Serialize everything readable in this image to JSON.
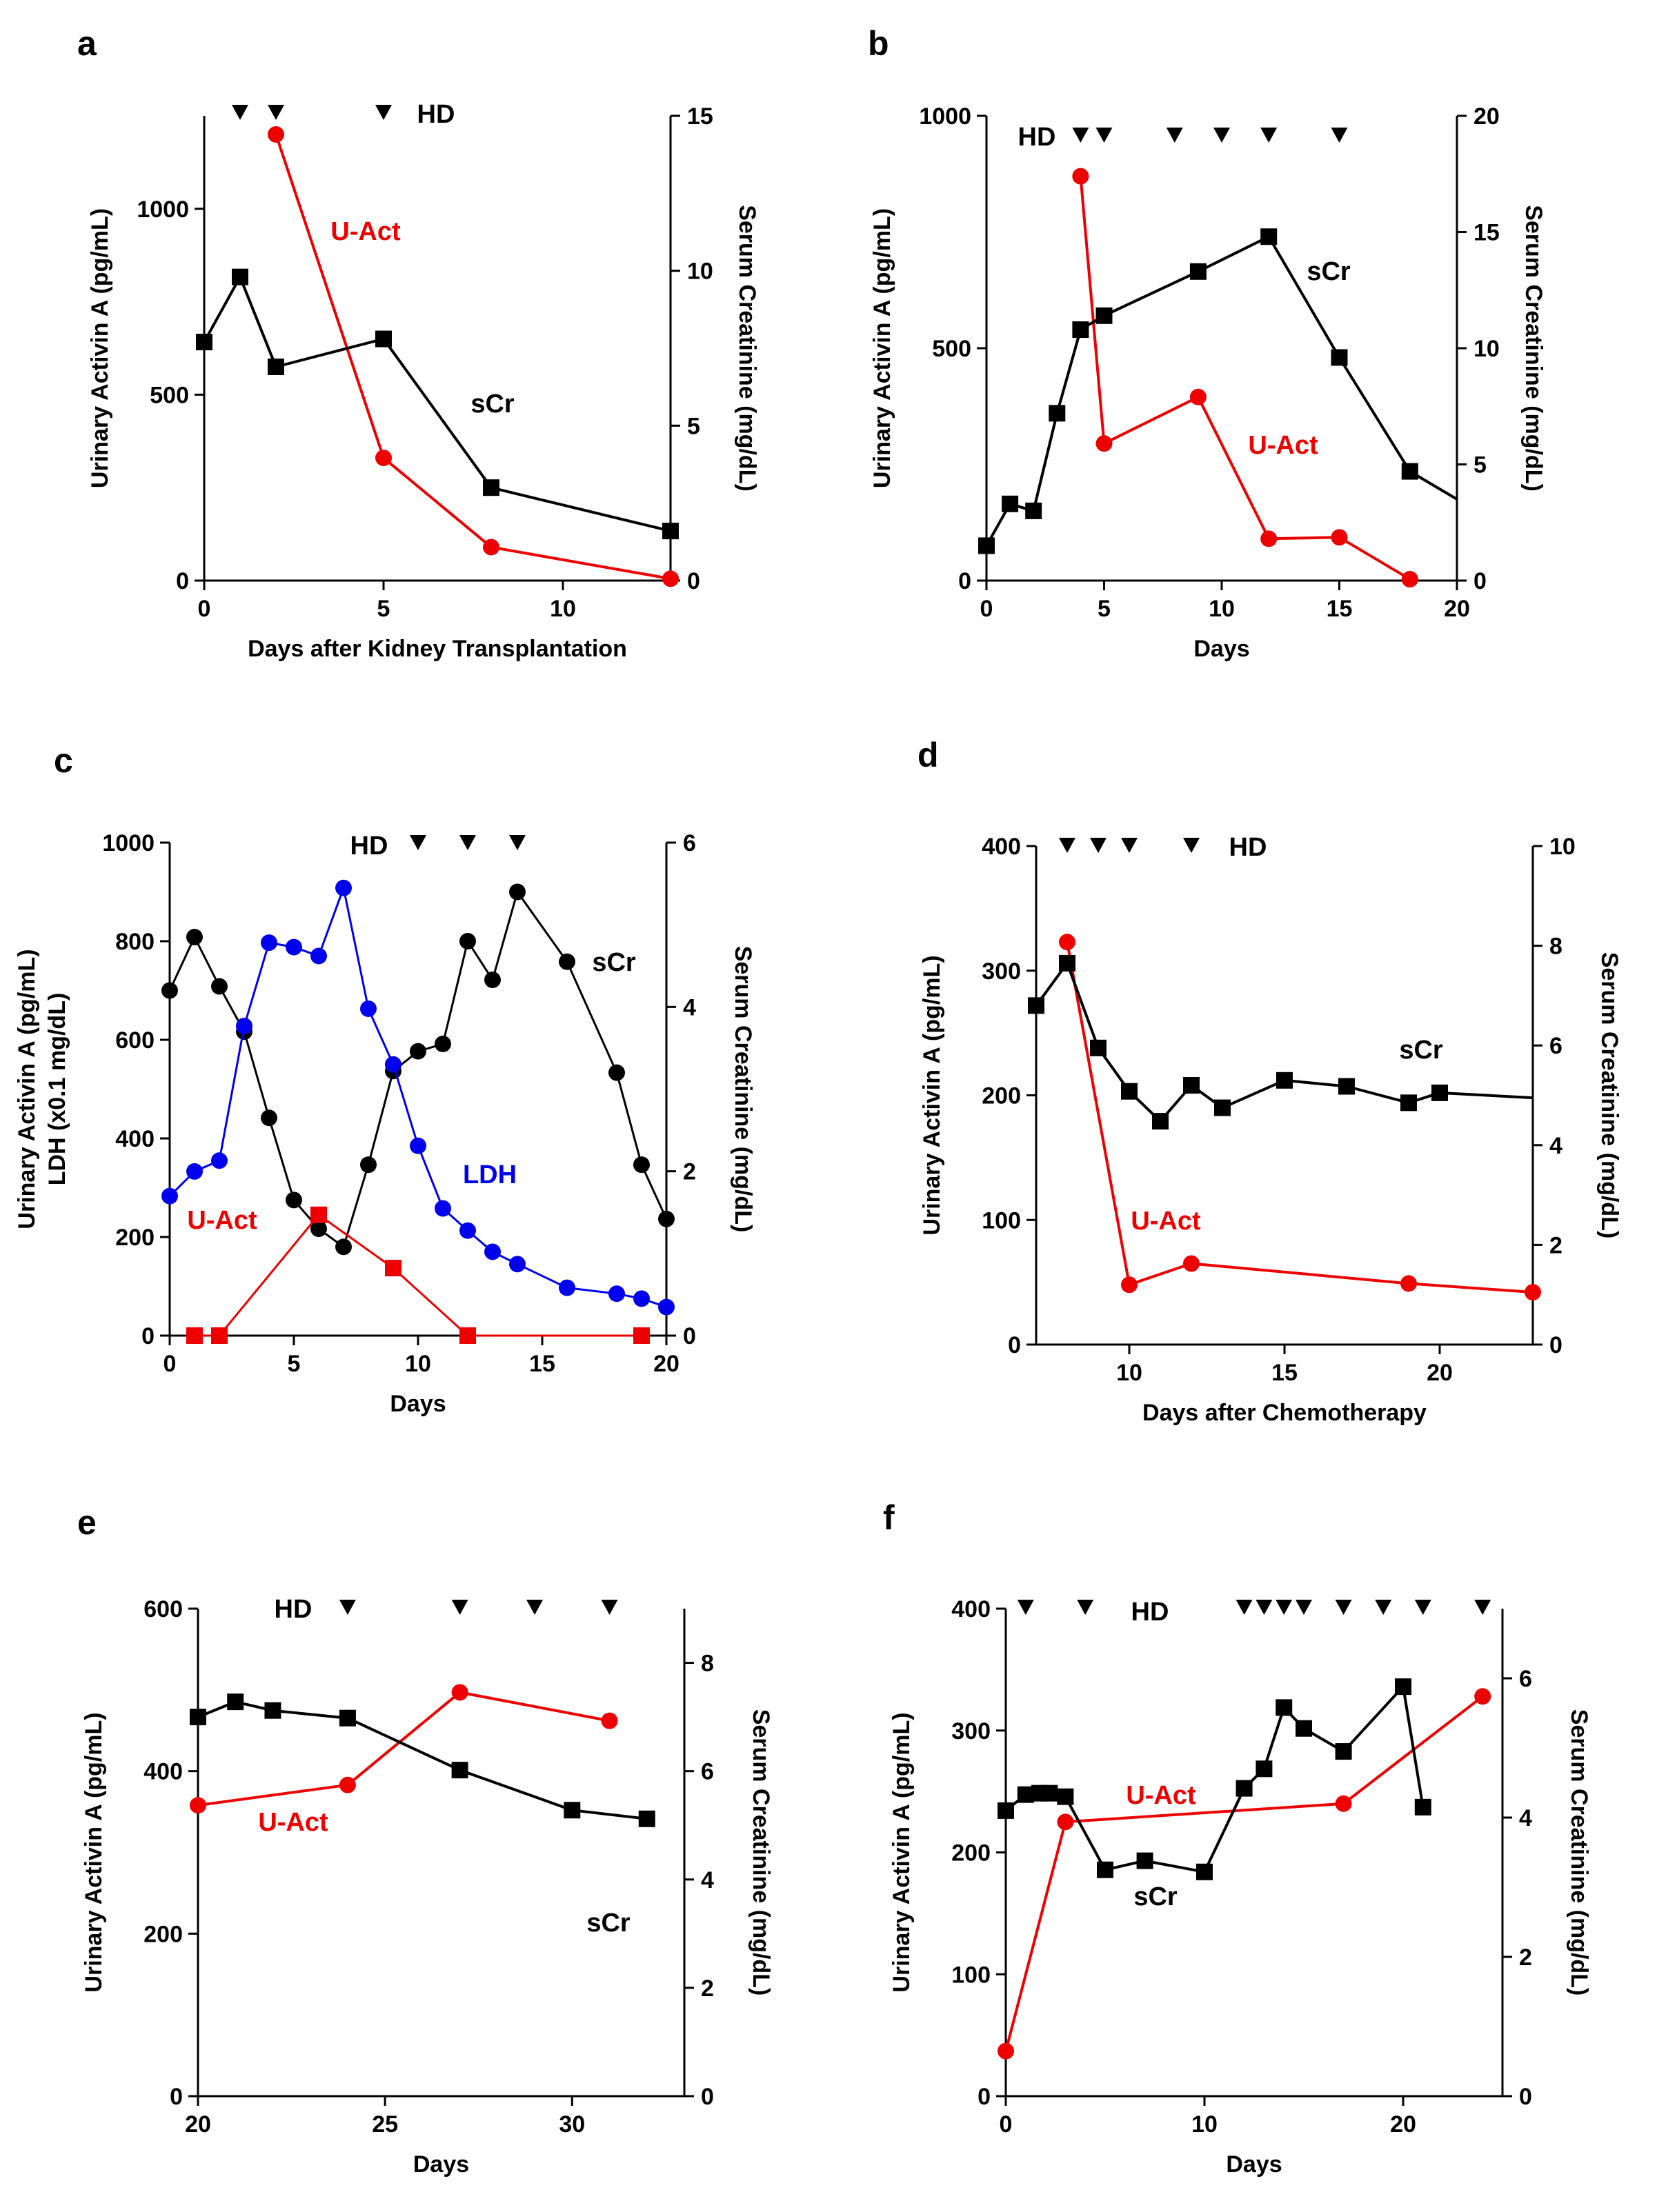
{
  "colors": {
    "scr": "#000000",
    "uact": "#ee0000",
    "ldh": "#0000ee",
    "axis": "#000000"
  },
  "chart_data": [
    {
      "id": "a",
      "panel_label": "a",
      "type": "line",
      "xlabel": "Days after Kidney Transplantation",
      "ylabel_left": "Urinary Activin A (pg/mL)",
      "ylabel_right": "Serum Creatinine (mg/dL)",
      "xlim": [
        0,
        13
      ],
      "xticks": [
        0,
        5,
        10
      ],
      "ylim_left": [
        0,
        1250
      ],
      "yticks_left": [
        0,
        500,
        1000
      ],
      "ylim_right": [
        0,
        15
      ],
      "yticks_right": [
        0,
        5,
        10,
        15
      ],
      "hd_label": "HD",
      "hd_days": [
        1,
        2,
        5
      ],
      "series": [
        {
          "name": "U-Act",
          "label": "U-Act",
          "color": "#ee0000",
          "marker": "circle",
          "axis": "left",
          "x": [
            2,
            5,
            8,
            13
          ],
          "y": [
            1200,
            330,
            90,
            5
          ]
        },
        {
          "name": "sCr",
          "label": "sCr",
          "color": "#000000",
          "marker": "square",
          "axis": "right",
          "x": [
            0,
            1,
            2,
            5,
            8,
            13
          ],
          "y": [
            7.7,
            9.8,
            6.9,
            7.8,
            3.0,
            1.6
          ]
        }
      ]
    },
    {
      "id": "b",
      "panel_label": "b",
      "type": "line",
      "xlabel": "Days",
      "ylabel_left": "Urinary Activin A (pg/mL)",
      "ylabel_right": "Serum Creatinine (mg/dL)",
      "xlim": [
        0,
        20
      ],
      "xticks": [
        0,
        5,
        10,
        15,
        20
      ],
      "ylim_left": [
        0,
        1000
      ],
      "yticks_left": [
        0,
        500,
        1000
      ],
      "ylim_right": [
        0,
        20
      ],
      "yticks_right": [
        0,
        5,
        10,
        15,
        20
      ],
      "hd_label": "HD",
      "hd_days": [
        4,
        5,
        8,
        10,
        12,
        15
      ],
      "series": [
        {
          "name": "U-Act",
          "label": "U-Act",
          "color": "#ee0000",
          "marker": "circle",
          "axis": "left",
          "x": [
            4,
            5,
            9,
            12,
            15,
            18
          ],
          "y": [
            870,
            295,
            395,
            90,
            93,
            3
          ]
        },
        {
          "name": "sCr",
          "label": "sCr",
          "color": "#000000",
          "marker": "square",
          "axis": "right",
          "x": [
            0,
            1,
            2,
            3,
            4,
            5,
            9,
            12,
            15,
            18,
            20
          ],
          "y": [
            1.5,
            3.3,
            3.0,
            7.2,
            10.8,
            11.4,
            13.3,
            14.8,
            9.6,
            4.7,
            3.5
          ],
          "marker_count": 10
        }
      ]
    },
    {
      "id": "c",
      "panel_label": "c",
      "type": "line",
      "xlabel": "Days",
      "ylabel_left_lines": [
        "Urinary Activin A (pg/mL)",
        "LDH (x0.1 mg/dL)"
      ],
      "ylabel_right": "Serum Creatinine (mg/dL)",
      "xlim": [
        0,
        20
      ],
      "xticks": [
        0,
        5,
        10,
        15,
        20
      ],
      "ylim_left": [
        0,
        1000
      ],
      "yticks_left": [
        0,
        200,
        400,
        600,
        800,
        1000
      ],
      "ylim_right": [
        0,
        6
      ],
      "yticks_right": [
        0,
        2,
        4,
        6
      ],
      "hd_label": "HD",
      "hd_days": [
        10,
        12,
        14
      ],
      "series": [
        {
          "name": "sCr",
          "label": "sCr",
          "color": "#000000",
          "marker": "circle",
          "axis": "right",
          "thin": true,
          "x": [
            0,
            1,
            2,
            3,
            4,
            5,
            6,
            7,
            8,
            9,
            10,
            11,
            12,
            13,
            14,
            16,
            18,
            19,
            20
          ],
          "y": [
            4.2,
            4.85,
            4.25,
            3.7,
            2.65,
            1.65,
            1.3,
            1.08,
            2.08,
            3.22,
            3.46,
            3.55,
            4.8,
            4.33,
            5.4,
            4.55,
            3.2,
            2.08,
            1.42
          ]
        },
        {
          "name": "LDH",
          "label": "LDH",
          "color": "#0000ee",
          "marker": "circle",
          "axis": "left",
          "thin": true,
          "x": [
            0,
            1,
            2,
            3,
            4,
            5,
            6,
            7,
            8,
            9,
            10,
            11,
            12,
            13,
            14,
            16,
            18,
            19,
            20
          ],
          "y": [
            283,
            333,
            355,
            628,
            797,
            788,
            770,
            908,
            663,
            550,
            385,
            258,
            213,
            170,
            145,
            97,
            85,
            75,
            58
          ]
        },
        {
          "name": "U-Act",
          "label": "U-Act",
          "color": "#ee0000",
          "marker": "square",
          "axis": "left",
          "thin": true,
          "x": [
            1,
            2,
            6,
            9,
            12,
            19
          ],
          "y": [
            0,
            0,
            245,
            137,
            0,
            0
          ]
        }
      ]
    },
    {
      "id": "d",
      "panel_label": "d",
      "type": "line",
      "xlabel": "Days after Chemotherapy",
      "ylabel_left": "Urinary Activin A (pg/mL)",
      "ylabel_right": "Serum Creatinine (mg/dL)",
      "xlim": [
        7,
        23
      ],
      "xticks": [
        10,
        15,
        20
      ],
      "ylim_left": [
        0,
        400
      ],
      "yticks_left": [
        0,
        100,
        200,
        300,
        400
      ],
      "ylim_right": [
        0,
        10
      ],
      "yticks_right": [
        0,
        2,
        4,
        6,
        8,
        10
      ],
      "hd_label": "HD",
      "hd_days": [
        8,
        9,
        10,
        12
      ],
      "series": [
        {
          "name": "U-Act",
          "label": "U-Act",
          "color": "#ee0000",
          "marker": "circle",
          "axis": "left",
          "x": [
            8,
            10,
            12,
            19,
            23
          ],
          "y": [
            323,
            48,
            65,
            49,
            42
          ]
        },
        {
          "name": "sCr",
          "label": "sCr",
          "color": "#000000",
          "marker": "square",
          "axis": "right",
          "x": [
            7,
            8,
            9,
            10,
            11,
            12,
            13,
            15,
            17,
            19,
            20,
            23
          ],
          "y": [
            6.8,
            7.65,
            5.95,
            5.08,
            4.48,
            5.2,
            4.75,
            5.3,
            5.18,
            4.85,
            5.05,
            4.95
          ],
          "marker_count": 11
        }
      ]
    },
    {
      "id": "e",
      "panel_label": "e",
      "type": "line",
      "xlabel": "Days",
      "ylabel_left": "Urinary Activin A (pg/mL)",
      "ylabel_right": "Serum Creatinine (mg/dL)",
      "xlim": [
        20,
        33
      ],
      "xticks": [
        20,
        25,
        30
      ],
      "ylim_left": [
        0,
        600
      ],
      "yticks_left": [
        0,
        200,
        400,
        600
      ],
      "ylim_right": [
        0,
        9
      ],
      "yticks_right": [
        0,
        2,
        4,
        6,
        8
      ],
      "hd_label": "HD",
      "hd_days": [
        24,
        27,
        29,
        31
      ],
      "series": [
        {
          "name": "U-Act",
          "label": "U-Act",
          "color": "#ee0000",
          "marker": "circle",
          "axis": "left",
          "x": [
            20,
            24,
            27,
            31
          ],
          "y": [
            358,
            383,
            497,
            462
          ]
        },
        {
          "name": "sCr",
          "label": "sCr",
          "color": "#000000",
          "marker": "square",
          "axis": "right",
          "x": [
            20,
            21,
            22,
            24,
            27,
            30,
            32
          ],
          "y": [
            7.0,
            7.28,
            7.12,
            6.98,
            6.02,
            5.28,
            5.12
          ]
        }
      ]
    },
    {
      "id": "f",
      "panel_label": "f",
      "type": "line",
      "xlabel": "Days",
      "ylabel_left": "Urinary Activin A (pg/mL)",
      "ylabel_right": "Serum Creatinine (mg/dL)",
      "xlim": [
        0,
        25
      ],
      "xticks": [
        0,
        10,
        20
      ],
      "ylim_left": [
        0,
        400
      ],
      "yticks_left": [
        0,
        100,
        200,
        300,
        400
      ],
      "ylim_right": [
        0,
        7
      ],
      "yticks_right": [
        0,
        2,
        4,
        6
      ],
      "hd_label": "HD",
      "hd_days": [
        1,
        4,
        12,
        13,
        14,
        15,
        17,
        19,
        21,
        24
      ],
      "series": [
        {
          "name": "U-Act",
          "label": "U-Act",
          "color": "#ee0000",
          "marker": "circle",
          "axis": "left",
          "x": [
            0,
            3,
            17,
            24
          ],
          "y": [
            37,
            225,
            240,
            328
          ]
        },
        {
          "name": "sCr",
          "label": "sCr",
          "color": "#000000",
          "marker": "square",
          "axis": "right",
          "x": [
            0,
            1,
            1.7,
            2.2,
            3,
            5,
            7,
            10,
            12,
            13,
            14,
            15,
            17,
            20,
            21
          ],
          "y": [
            4.1,
            4.33,
            4.35,
            4.35,
            4.3,
            3.25,
            3.38,
            3.22,
            4.42,
            4.7,
            5.58,
            5.28,
            4.95,
            5.88,
            4.15
          ]
        }
      ]
    }
  ]
}
